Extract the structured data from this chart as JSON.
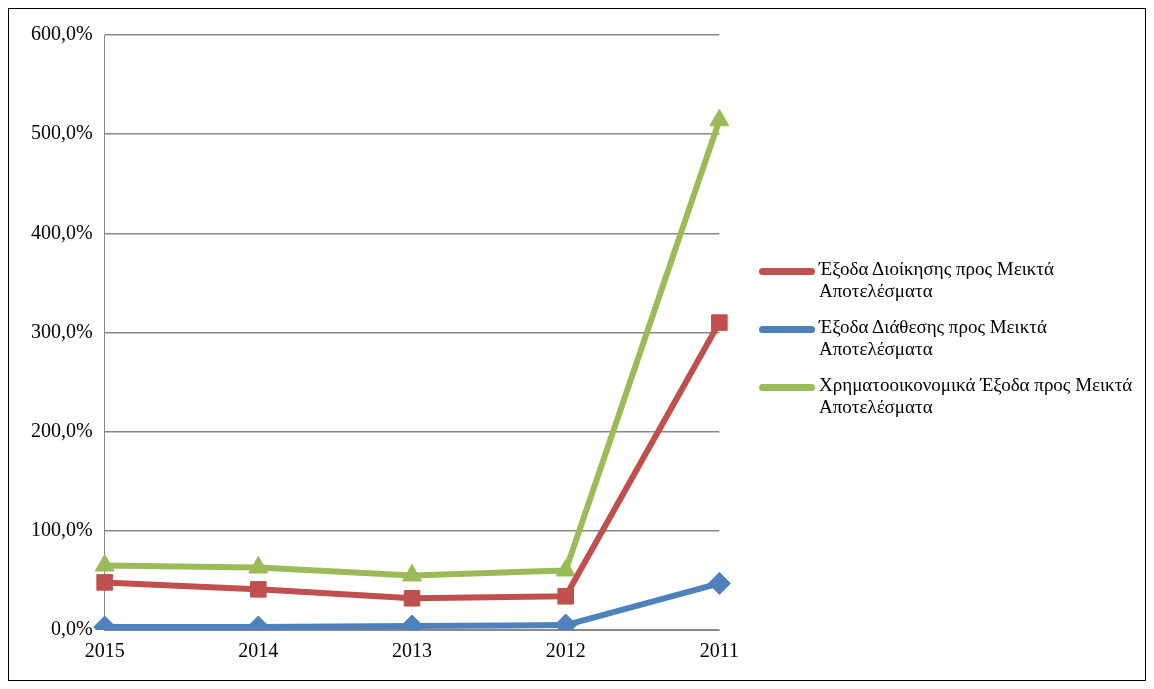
{
  "chart_data": {
    "type": "line",
    "categories": [
      "2015",
      "2014",
      "2013",
      "2012",
      "2011"
    ],
    "series": [
      {
        "name": "Έξοδα Διοίκησης προς Μεικτά Αποτελέσματα",
        "color": "#c0504d",
        "marker": "square",
        "values": [
          48,
          41,
          32,
          34,
          310
        ]
      },
      {
        "name": "Έξοδα Διάθεσης προς Μεικτά Αποτελέσματα",
        "color": "#4f81bd",
        "marker": "diamond",
        "values": [
          3,
          3,
          4,
          5,
          47
        ]
      },
      {
        "name": "Χρηματοοικονομικά Έξοδα προς Μεικτά Αποτελέσματα",
        "color": "#9bbb59",
        "marker": "triangle",
        "values": [
          65,
          63,
          55,
          60,
          514
        ]
      }
    ],
    "ylim": [
      0,
      600
    ],
    "yticks": [
      {
        "value": 0,
        "label": "0,0%"
      },
      {
        "value": 100,
        "label": "100,0%"
      },
      {
        "value": 200,
        "label": "200,0%"
      },
      {
        "value": 300,
        "label": "300,0%"
      },
      {
        "value": 400,
        "label": "400,0%"
      },
      {
        "value": 500,
        "label": "500,0%"
      },
      {
        "value": 600,
        "label": "600,0%"
      }
    ],
    "grid": "y",
    "legend": "right"
  }
}
